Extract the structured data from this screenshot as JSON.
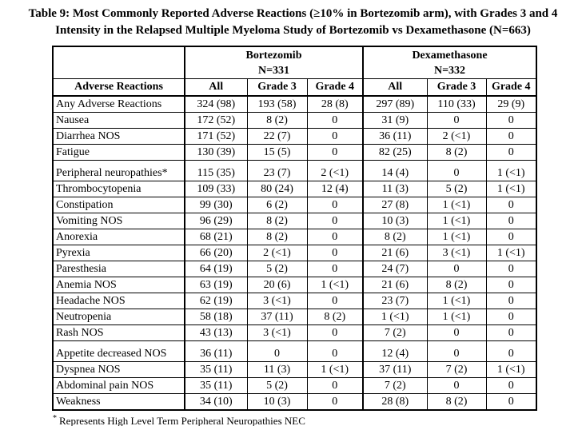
{
  "title": {
    "line1": "Table 9: Most Commonly Reported Adverse Reactions (≥10% in Bortezomib arm), with Grades 3 and 4",
    "line2": "Intensity in the Relapsed Multiple Myeloma Study of Bortezomib vs Dexamethasone (N=663)"
  },
  "table": {
    "header": {
      "reactions_label": "Adverse Reactions",
      "groups": [
        {
          "name": "Bortezomib",
          "n": "N=331"
        },
        {
          "name": "Dexamethasone",
          "n": "N=332"
        }
      ],
      "sub_columns": [
        "All",
        "Grade 3",
        "Grade 4"
      ]
    },
    "rows": [
      {
        "reaction": "Any Adverse Reactions",
        "values": [
          "324 (98)",
          "193 (58)",
          "28 (8)",
          "297 (89)",
          "110 (33)",
          "29 (9)"
        ],
        "group_start": false
      },
      {
        "reaction": "Nausea",
        "values": [
          "172 (52)",
          "8 (2)",
          "0",
          "31 (9)",
          "0",
          "0"
        ],
        "group_start": false
      },
      {
        "reaction": "Diarrhea NOS",
        "values": [
          "171 (52)",
          "22 (7)",
          "0",
          "36 (11)",
          "2 (<1)",
          "0"
        ],
        "group_start": false
      },
      {
        "reaction": "Fatigue",
        "values": [
          "130 (39)",
          "15 (5)",
          "0",
          "82 (25)",
          "8 (2)",
          "0"
        ],
        "group_start": false
      },
      {
        "reaction": "Peripheral neuropathies*",
        "values": [
          "115 (35)",
          "23 (7)",
          "2 (<1)",
          "14 (4)",
          "0",
          "1 (<1)"
        ],
        "group_start": true
      },
      {
        "reaction": "Thrombocytopenia",
        "values": [
          "109 (33)",
          "80 (24)",
          "12 (4)",
          "11 (3)",
          "5 (2)",
          "1 (<1)"
        ],
        "group_start": false
      },
      {
        "reaction": "Constipation",
        "values": [
          "99 (30)",
          "6 (2)",
          "0",
          "27 (8)",
          "1 (<1)",
          "0"
        ],
        "group_start": false
      },
      {
        "reaction": "Vomiting NOS",
        "values": [
          "96 (29)",
          "8 (2)",
          "0",
          "10 (3)",
          "1 (<1)",
          "0"
        ],
        "group_start": false
      },
      {
        "reaction": "Anorexia",
        "values": [
          "68 (21)",
          "8 (2)",
          "0",
          "8 (2)",
          "1 (<1)",
          "0"
        ],
        "group_start": false
      },
      {
        "reaction": "Pyrexia",
        "values": [
          "66 (20)",
          "2 (<1)",
          "0",
          "21 (6)",
          "3 (<1)",
          "1 (<1)"
        ],
        "group_start": false
      },
      {
        "reaction": "Paresthesia",
        "values": [
          "64 (19)",
          "5 (2)",
          "0",
          "24 (7)",
          "0",
          "0"
        ],
        "group_start": false
      },
      {
        "reaction": "Anemia NOS",
        "values": [
          "63 (19)",
          "20 (6)",
          "1 (<1)",
          "21 (6)",
          "8 (2)",
          "0"
        ],
        "group_start": false
      },
      {
        "reaction": "Headache NOS",
        "values": [
          "62 (19)",
          "3 (<1)",
          "0",
          "23 (7)",
          "1 (<1)",
          "0"
        ],
        "group_start": false
      },
      {
        "reaction": "Neutropenia",
        "values": [
          "58 (18)",
          "37 (11)",
          "8 (2)",
          "1 (<1)",
          "1 (<1)",
          "0"
        ],
        "group_start": false
      },
      {
        "reaction": "Rash NOS",
        "values": [
          "43 (13)",
          "3 (<1)",
          "0",
          "7 (2)",
          "0",
          "0"
        ],
        "group_start": false
      },
      {
        "reaction": "Appetite decreased NOS",
        "values": [
          "36 (11)",
          "0",
          "0",
          "12 (4)",
          "0",
          "0"
        ],
        "group_start": true
      },
      {
        "reaction": "Dyspnea NOS",
        "values": [
          "35 (11)",
          "11 (3)",
          "1 (<1)",
          "37 (11)",
          "7 (2)",
          "1 (<1)"
        ],
        "group_start": false
      },
      {
        "reaction": "Abdominal pain NOS",
        "values": [
          "35 (11)",
          "5 (2)",
          "0",
          "7 (2)",
          "0",
          "0"
        ],
        "group_start": false
      },
      {
        "reaction": "Weakness",
        "values": [
          "34 (10)",
          "10 (3)",
          "0",
          "28 (8)",
          "8 (2)",
          "0"
        ],
        "group_start": false
      }
    ]
  },
  "footnote": {
    "marker": "*",
    "text": "Represents High Level Term Peripheral Neuropathies NEC"
  }
}
